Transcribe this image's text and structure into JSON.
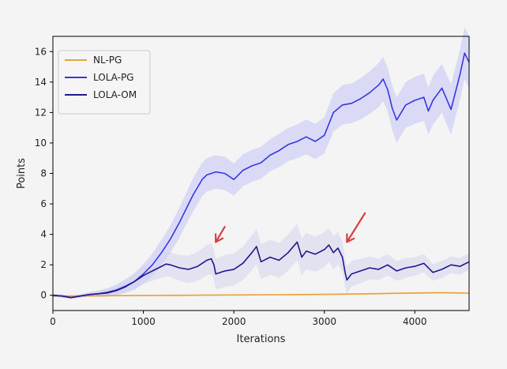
{
  "chart_data": {
    "type": "line",
    "xlabel": "Iterations",
    "ylabel": "Points",
    "xlim": [
      0,
      4600
    ],
    "ylim": [
      -1,
      17
    ],
    "xticks": [
      0,
      1000,
      2000,
      3000,
      4000
    ],
    "yticks": [
      0,
      2,
      4,
      6,
      8,
      10,
      12,
      14,
      16
    ],
    "grid": false,
    "legend_position": "top-left",
    "series": [
      {
        "name": "NL-PG",
        "color": "#e8a33c",
        "band_color": "#f5d9a8",
        "x": [
          0,
          500,
          1000,
          1500,
          2000,
          2500,
          3000,
          3500,
          4000,
          4300,
          4600
        ],
        "y": [
          -0.05,
          -0.03,
          -0.01,
          0.0,
          0.02,
          0.04,
          0.06,
          0.1,
          0.15,
          0.17,
          0.14
        ],
        "spread": [
          0.05,
          0.05,
          0.05,
          0.05,
          0.05,
          0.05,
          0.05,
          0.06,
          0.06,
          0.06,
          0.06
        ]
      },
      {
        "name": "LOLA-PG",
        "color": "#3838e0",
        "band_color": "#c5c5f7",
        "x": [
          0,
          100,
          200,
          300,
          400,
          500,
          600,
          700,
          800,
          900,
          1000,
          1100,
          1200,
          1300,
          1400,
          1500,
          1550,
          1600,
          1650,
          1700,
          1800,
          1900,
          2000,
          2100,
          2200,
          2300,
          2400,
          2500,
          2600,
          2700,
          2800,
          2900,
          3000,
          3100,
          3200,
          3300,
          3400,
          3500,
          3600,
          3650,
          3700,
          3750,
          3800,
          3900,
          4000,
          4100,
          4150,
          4200,
          4300,
          4400,
          4500,
          4550,
          4600
        ],
        "y": [
          0,
          -0.05,
          -0.15,
          -0.05,
          0.05,
          0.1,
          0.2,
          0.35,
          0.6,
          0.9,
          1.4,
          2.0,
          2.8,
          3.7,
          4.8,
          6.0,
          6.6,
          7.1,
          7.6,
          7.9,
          8.1,
          8.0,
          7.6,
          8.2,
          8.5,
          8.7,
          9.2,
          9.5,
          9.9,
          10.1,
          10.4,
          10.1,
          10.5,
          12.0,
          12.5,
          12.6,
          12.9,
          13.3,
          13.8,
          14.2,
          13.5,
          12.3,
          11.5,
          12.5,
          12.8,
          13.0,
          12.1,
          12.8,
          13.6,
          12.2,
          14.5,
          15.9,
          15.3
        ],
        "spread": [
          0.1,
          0.1,
          0.1,
          0.1,
          0.15,
          0.2,
          0.25,
          0.35,
          0.45,
          0.55,
          0.65,
          0.75,
          0.85,
          0.9,
          1.0,
          1.05,
          1.1,
          1.1,
          1.1,
          1.1,
          1.1,
          1.1,
          1.05,
          1.05,
          1.05,
          1.05,
          1.05,
          1.1,
          1.1,
          1.1,
          1.15,
          1.15,
          1.2,
          1.25,
          1.3,
          1.3,
          1.35,
          1.4,
          1.45,
          1.45,
          1.45,
          1.45,
          1.5,
          1.5,
          1.55,
          1.55,
          1.55,
          1.6,
          1.6,
          1.65,
          1.65,
          1.7,
          1.7
        ]
      },
      {
        "name": "LOLA-OM",
        "color": "#1f1a8c",
        "band_color": "#d6d4ef",
        "x": [
          0,
          100,
          200,
          300,
          400,
          500,
          600,
          700,
          800,
          900,
          1000,
          1100,
          1200,
          1250,
          1300,
          1400,
          1500,
          1600,
          1700,
          1750,
          1780,
          1800,
          1900,
          2000,
          2100,
          2200,
          2250,
          2300,
          2400,
          2500,
          2600,
          2700,
          2750,
          2800,
          2900,
          3000,
          3050,
          3100,
          3150,
          3200,
          3230,
          3250,
          3300,
          3400,
          3500,
          3600,
          3700,
          3800,
          3900,
          4000,
          4100,
          4200,
          4300,
          4400,
          4500,
          4600
        ],
        "y": [
          0,
          -0.05,
          -0.15,
          -0.05,
          0.05,
          0.1,
          0.15,
          0.3,
          0.55,
          0.9,
          1.3,
          1.6,
          1.9,
          2.05,
          2.0,
          1.8,
          1.7,
          1.9,
          2.3,
          2.4,
          2.0,
          1.4,
          1.6,
          1.7,
          2.1,
          2.8,
          3.2,
          2.2,
          2.5,
          2.3,
          2.8,
          3.5,
          2.5,
          2.9,
          2.7,
          3.0,
          3.3,
          2.8,
          3.1,
          2.5,
          1.5,
          1.0,
          1.4,
          1.6,
          1.8,
          1.7,
          2.0,
          1.6,
          1.8,
          1.9,
          2.1,
          1.5,
          1.7,
          2.0,
          1.9,
          2.2
        ],
        "spread": [
          0.1,
          0.1,
          0.1,
          0.1,
          0.15,
          0.2,
          0.25,
          0.3,
          0.35,
          0.45,
          0.55,
          0.65,
          0.75,
          0.8,
          0.8,
          0.85,
          0.9,
          0.95,
          1.0,
          1.0,
          1.0,
          1.0,
          1.05,
          1.05,
          1.1,
          1.15,
          1.15,
          1.15,
          1.15,
          1.15,
          1.2,
          1.2,
          1.2,
          1.2,
          1.15,
          1.15,
          1.1,
          1.1,
          1.05,
          1.0,
          0.95,
          0.9,
          0.85,
          0.8,
          0.75,
          0.7,
          0.7,
          0.65,
          0.65,
          0.6,
          0.6,
          0.55,
          0.55,
          0.55,
          0.55,
          0.55
        ]
      }
    ],
    "annotations": [
      {
        "type": "arrow",
        "color": "#d84040",
        "from": [
          1900,
          4.5
        ],
        "to": [
          1800,
          3.5
        ]
      },
      {
        "type": "arrow",
        "color": "#d84040",
        "from": [
          3450,
          5.4
        ],
        "to": [
          3250,
          3.5
        ]
      }
    ]
  }
}
